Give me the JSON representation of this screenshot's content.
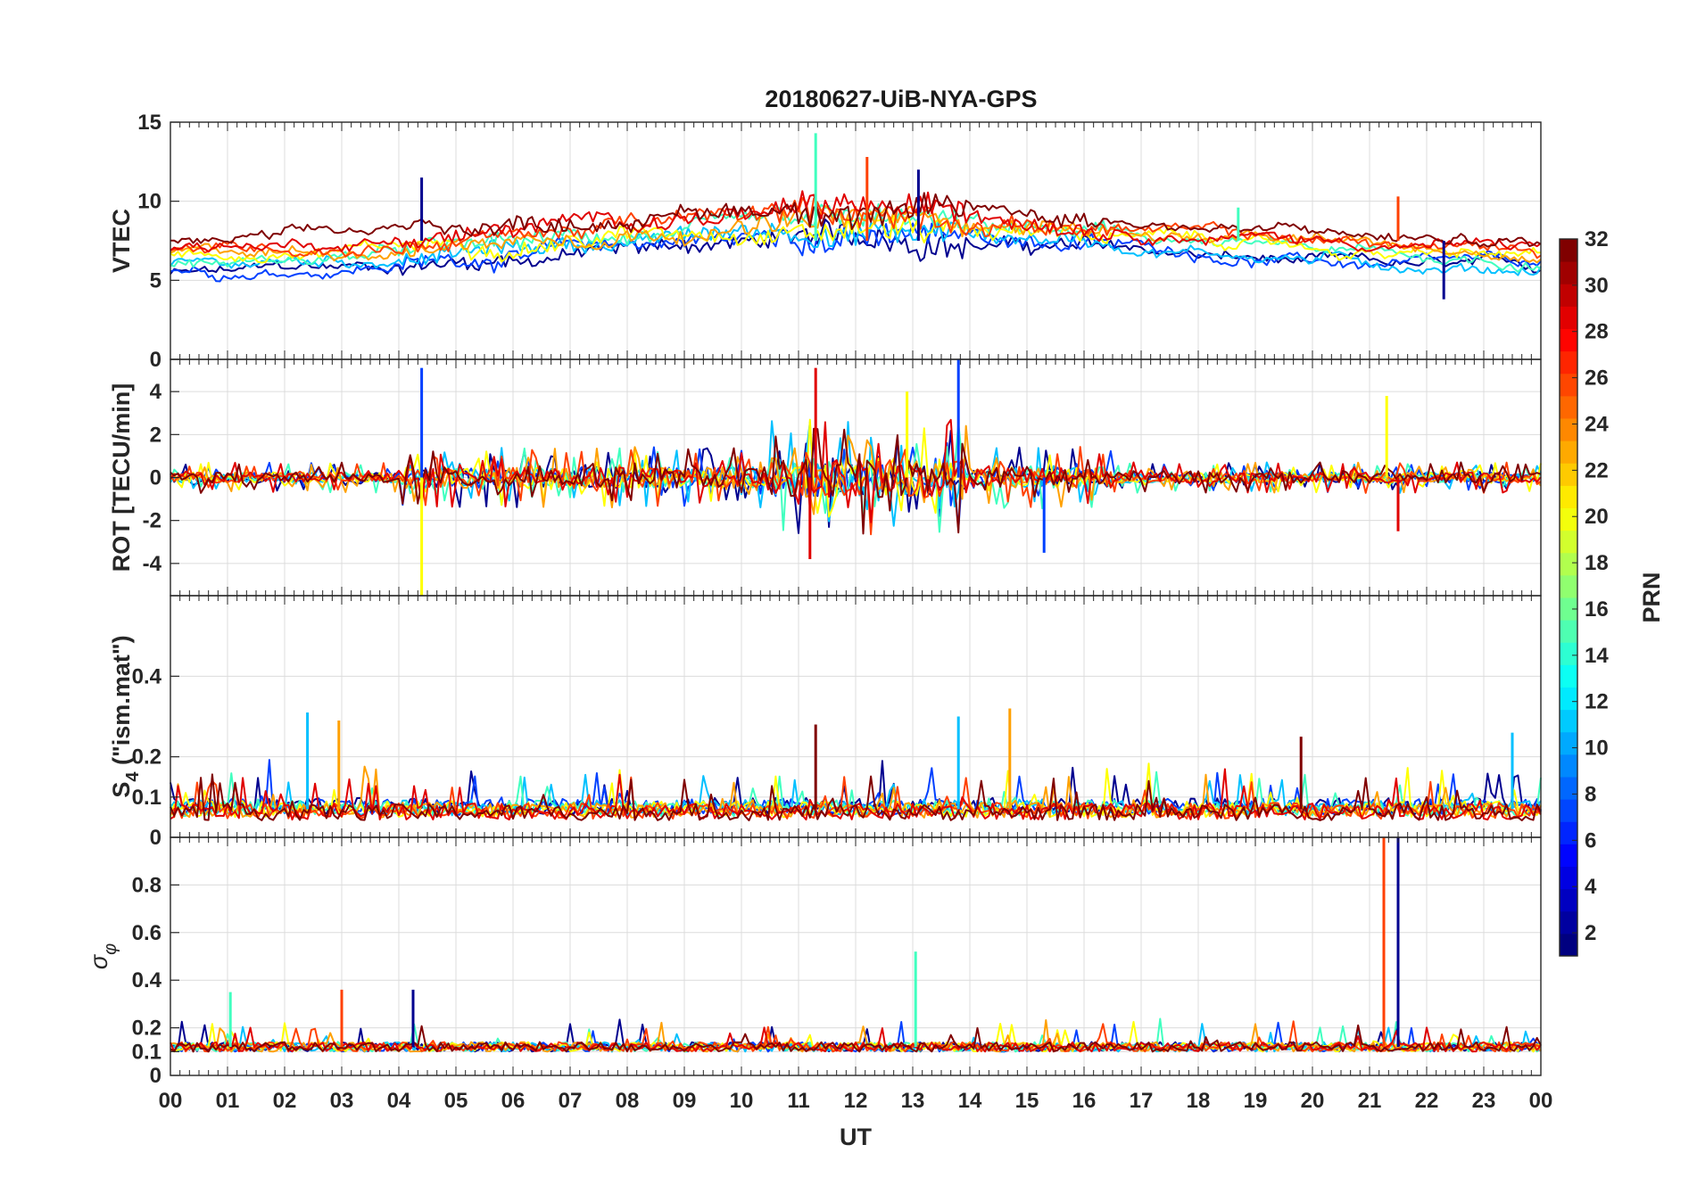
{
  "chart_data": [
    {
      "panel": "vtec",
      "type": "line",
      "title": "20180627-UiB-NYA-GPS",
      "ylabel": "VTEC",
      "ylim": [
        0,
        15
      ],
      "yticks": [
        "0",
        "5",
        "10",
        "15"
      ],
      "ytick_values": [
        0,
        5,
        10,
        15
      ],
      "series_colors": [
        "#00008f",
        "#0040ff",
        "#00c0ff",
        "#40ffbf",
        "#ffff00",
        "#ffa000",
        "#ff4000",
        "#e00000",
        "#800000"
      ],
      "background_level": 7.5,
      "spikes": [
        {
          "x": 4.4,
          "value": 11.5
        },
        {
          "x": 11.3,
          "value": 14.3
        },
        {
          "x": 12.2,
          "value": 12.8
        },
        {
          "x": 13.1,
          "value": 12.0
        },
        {
          "x": 18.7,
          "value": 9.6
        },
        {
          "x": 21.5,
          "value": 10.3
        },
        {
          "x": 22.3,
          "value": 3.8
        }
      ]
    },
    {
      "panel": "rot",
      "type": "line",
      "ylabel": "ROT [TECU/min]",
      "ylim": [
        -5.5,
        5.5
      ],
      "yticks": [
        "-4",
        "-2",
        "0",
        "2",
        "4"
      ],
      "ytick_values": [
        -4,
        -2,
        0,
        2,
        4
      ],
      "spikes": [
        {
          "x": 4.4,
          "value": 5.1
        },
        {
          "x": 4.4,
          "value": -5.5
        },
        {
          "x": 11.3,
          "value": 5.1
        },
        {
          "x": 13.8,
          "value": 5.5
        },
        {
          "x": 12.9,
          "value": 4.0
        },
        {
          "x": 11.2,
          "value": -3.8
        },
        {
          "x": 15.3,
          "value": -3.5
        },
        {
          "x": 21.3,
          "value": 3.8
        },
        {
          "x": 21.5,
          "value": -2.5
        }
      ]
    },
    {
      "panel": "s4",
      "type": "line",
      "ylabel_main": "S",
      "ylabel_sub": "4",
      "ylabel_rest": " (\"ism.mat\")",
      "ylim": [
        0,
        0.6
      ],
      "yticks": [
        "0",
        "0.1",
        "0.2",
        "0.4"
      ],
      "ytick_values": [
        0,
        0.1,
        0.2,
        0.4
      ],
      "baseline": 0.07,
      "spikes": [
        {
          "x": 2.4,
          "value": 0.31
        },
        {
          "x": 2.95,
          "value": 0.29
        },
        {
          "x": 11.3,
          "value": 0.28
        },
        {
          "x": 13.8,
          "value": 0.3
        },
        {
          "x": 14.7,
          "value": 0.32
        },
        {
          "x": 19.8,
          "value": 0.25
        },
        {
          "x": 23.5,
          "value": 0.26
        }
      ]
    },
    {
      "panel": "sigma_phi",
      "type": "line",
      "ylabel_main": "σ",
      "ylabel_sub": "φ",
      "ylim": [
        0,
        1
      ],
      "yticks": [
        "0",
        "0.1",
        "0.2",
        "0.4",
        "0.6",
        "0.8"
      ],
      "ytick_values": [
        0,
        0.1,
        0.2,
        0.4,
        0.6,
        0.8
      ],
      "xlabel": "UT",
      "xticks": [
        "00",
        "01",
        "02",
        "03",
        "04",
        "05",
        "06",
        "07",
        "08",
        "09",
        "10",
        "11",
        "12",
        "13",
        "14",
        "15",
        "16",
        "17",
        "18",
        "19",
        "20",
        "21",
        "22",
        "23",
        "00"
      ],
      "xlim": [
        0,
        24
      ],
      "baseline": 0.12,
      "spikes": [
        {
          "x": 1.05,
          "value": 0.35
        },
        {
          "x": 3.0,
          "value": 0.36
        },
        {
          "x": 4.25,
          "value": 0.36
        },
        {
          "x": 13.05,
          "value": 0.52
        },
        {
          "x": 21.25,
          "value": 1.0
        },
        {
          "x": 21.5,
          "value": 1.0
        }
      ]
    }
  ],
  "colorbar": {
    "label": "PRN",
    "ticks": [
      "2",
      "4",
      "6",
      "8",
      "10",
      "12",
      "14",
      "16",
      "18",
      "20",
      "22",
      "24",
      "26",
      "28",
      "30",
      "32"
    ],
    "tick_values": [
      2,
      4,
      6,
      8,
      10,
      12,
      14,
      16,
      18,
      20,
      22,
      24,
      26,
      28,
      30,
      32
    ],
    "range": [
      1,
      32
    ],
    "colormap": "jet"
  }
}
